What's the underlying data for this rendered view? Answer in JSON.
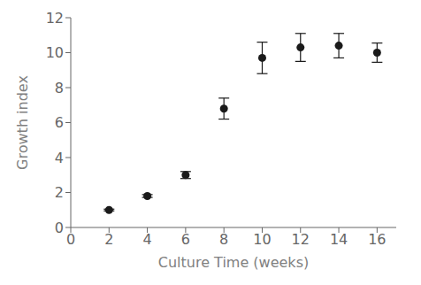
{
  "chart_data": {
    "type": "scatter",
    "x": [
      2,
      4,
      6,
      8,
      10,
      12,
      14,
      16
    ],
    "values": [
      1.0,
      1.8,
      3.0,
      6.8,
      9.7,
      10.3,
      10.4,
      10.0
    ],
    "yerr": [
      0.05,
      0.08,
      0.2,
      0.6,
      0.9,
      0.8,
      0.7,
      0.55
    ],
    "xlabel": "Culture Time (weeks)",
    "ylabel": "Growth index",
    "xlim": [
      0,
      17
    ],
    "ylim": [
      0,
      12
    ],
    "xticks": [
      0,
      2,
      4,
      6,
      8,
      10,
      12,
      14,
      16
    ],
    "yticks": [
      0,
      2,
      4,
      6,
      8,
      10,
      12
    ],
    "color": "#1a1a1a",
    "marker": "circle",
    "grid": false
  }
}
